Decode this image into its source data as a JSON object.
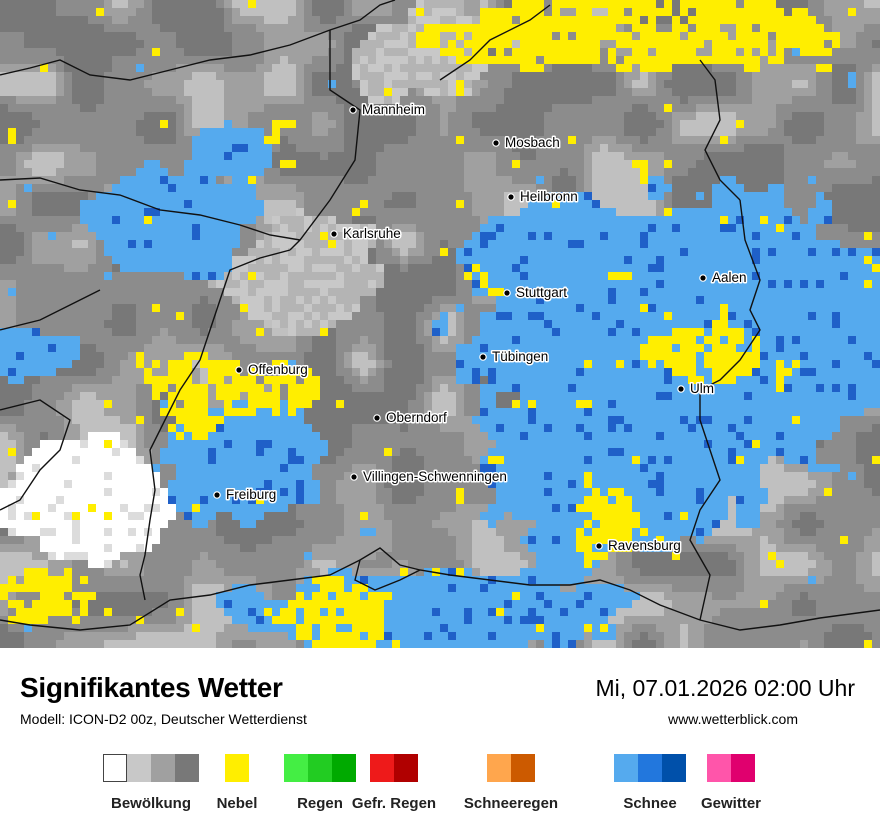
{
  "map": {
    "cities": [
      {
        "name": "Mannheim"
      },
      {
        "name": "Mosbach"
      },
      {
        "name": "Heilbronn"
      },
      {
        "name": "Karlsruhe"
      },
      {
        "name": "Stuttgart"
      },
      {
        "name": "Aalen"
      },
      {
        "name": "Tübingen"
      },
      {
        "name": "Offenburg"
      },
      {
        "name": "Ulm"
      },
      {
        "name": "Oberndorf"
      },
      {
        "name": "Villingen-Schwenningen"
      },
      {
        "name": "Freiburg"
      },
      {
        "name": "Ravensburg"
      }
    ]
  },
  "header": {
    "title": "Signifikantes Wetter",
    "model": "Modell: ICON-D2 00z, Deutscher Wetterdienst",
    "datetime": "Mi, 07.01.2026 02:00 Uhr",
    "website": "www.wetterblick.com"
  },
  "legend": [
    {
      "label": "Bewölkung",
      "colors": [
        "#ffffff",
        "#c8c8c8",
        "#a0a0a0",
        "#787878"
      ]
    },
    {
      "label": "Nebel",
      "colors": [
        "#ffee00"
      ]
    },
    {
      "label": "Regen",
      "colors": [
        "#44ee44",
        "#22cc22",
        "#00aa00"
      ]
    },
    {
      "label": "Gefr. Regen",
      "colors": [
        "#ee1a1a",
        "#b00000"
      ]
    },
    {
      "label": "Schneeregen",
      "colors": [
        "#ffa64d",
        "#cc5a00"
      ]
    },
    {
      "label": "Schnee",
      "colors": [
        "#55aaee",
        "#2277dd",
        "#0050aa"
      ]
    },
    {
      "label": "Gewitter",
      "colors": [
        "#ff55aa",
        "#e0006e"
      ]
    }
  ]
}
